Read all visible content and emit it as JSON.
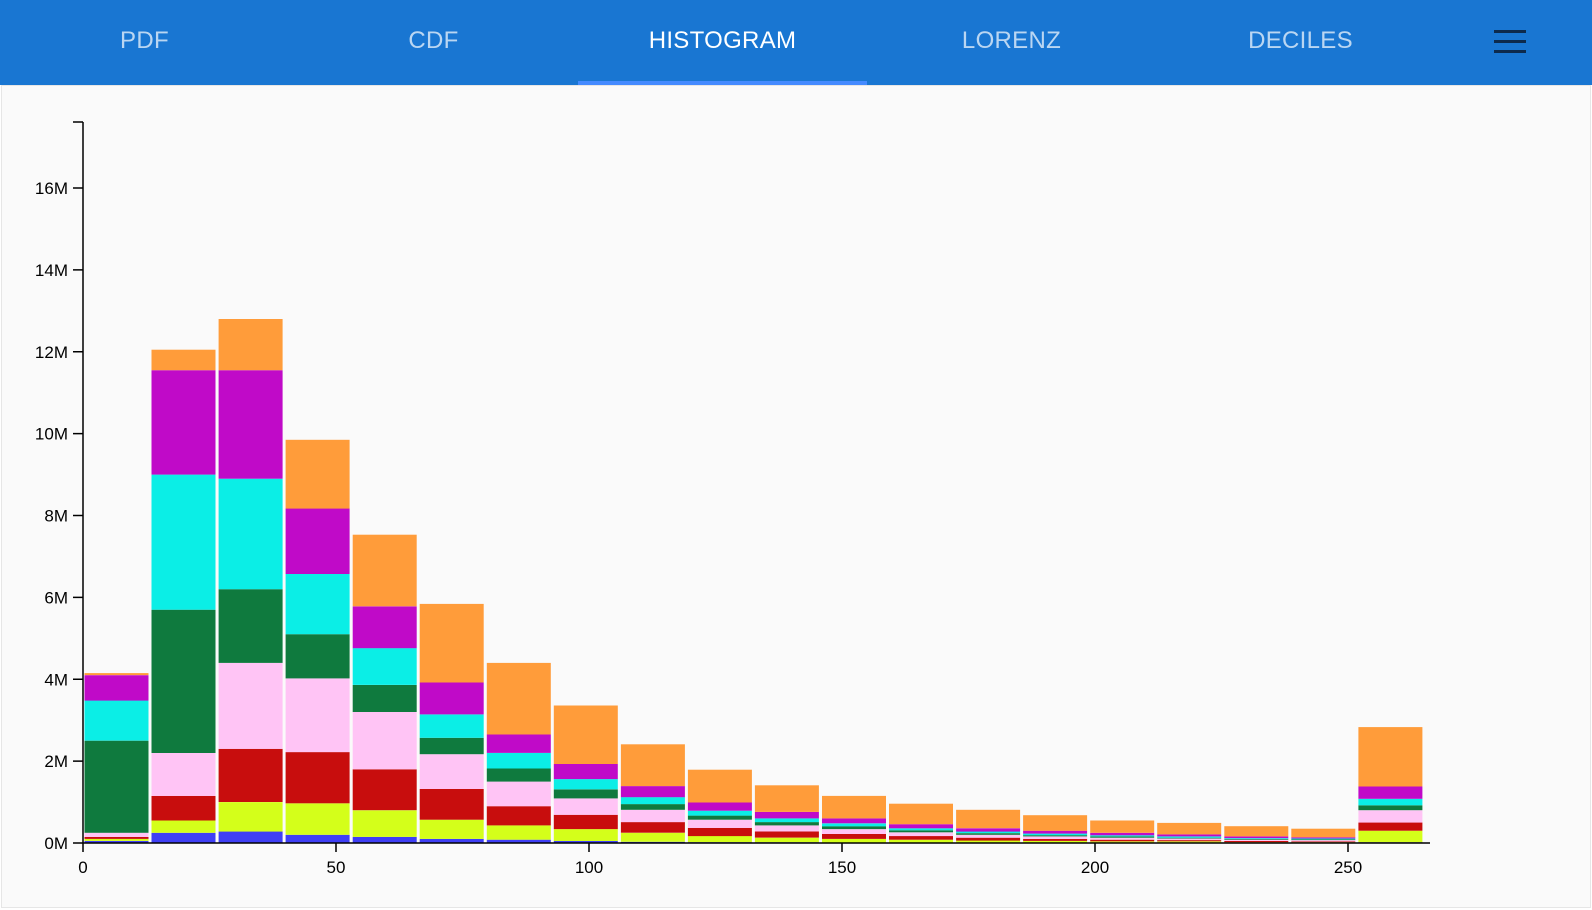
{
  "tabs": [
    {
      "label": "PDF",
      "active": false
    },
    {
      "label": "CDF",
      "active": false
    },
    {
      "label": "HISTOGRAM",
      "active": true
    },
    {
      "label": "LORENZ",
      "active": false
    },
    {
      "label": "DECILES",
      "active": false
    }
  ],
  "menu_icon": "hamburger-menu-icon",
  "colors": {
    "appbar": "#1976d2",
    "indicator": "#448aff",
    "series": [
      "#3f3ff5",
      "#d4ff1a",
      "#c80d0d",
      "#ffc4f5",
      "#0f7a3e",
      "#0beee6",
      "#c00ac8",
      "#ff9c3a"
    ]
  },
  "chart_data": {
    "type": "bar",
    "stacked": true,
    "title": "",
    "xlabel": "",
    "ylabel": "",
    "xlim": [
      0,
      265
    ],
    "ylim": [
      0,
      17.6
    ],
    "y_unit": "M",
    "x_ticks": [
      0,
      50,
      100,
      150,
      200,
      250
    ],
    "y_ticks": [
      0,
      2,
      4,
      6,
      8,
      10,
      12,
      14,
      16
    ],
    "y_tick_labels": [
      "0M",
      "2M",
      "4M",
      "6M",
      "8M",
      "10M",
      "12M",
      "14M",
      "16M"
    ],
    "bin_width": 13.25,
    "bins": [
      0,
      13.25,
      26.5,
      39.75,
      53,
      66.25,
      79.5,
      92.75,
      106,
      119.25,
      132.5,
      145.75,
      159,
      172.25,
      185.5,
      198.75,
      212,
      225.25,
      238.5,
      251.75
    ],
    "series": [
      {
        "values": [
          0.05,
          0.25,
          0.28,
          0.2,
          0.15,
          0.1,
          0.08,
          0.05,
          0.03,
          0.02,
          0.02,
          0.01,
          0.01,
          0.01,
          0.01,
          0.01,
          0.01,
          0.0,
          0.0,
          0.02
        ]
      },
      {
        "values": [
          0.05,
          0.3,
          0.72,
          0.77,
          0.65,
          0.47,
          0.35,
          0.29,
          0.22,
          0.15,
          0.11,
          0.09,
          0.07,
          0.05,
          0.04,
          0.03,
          0.03,
          0.02,
          0.02,
          0.28
        ]
      },
      {
        "values": [
          0.05,
          0.6,
          1.3,
          1.25,
          1.0,
          0.75,
          0.47,
          0.35,
          0.26,
          0.2,
          0.15,
          0.12,
          0.09,
          0.07,
          0.05,
          0.04,
          0.03,
          0.03,
          0.02,
          0.2
        ]
      },
      {
        "values": [
          0.1,
          1.05,
          2.1,
          1.8,
          1.4,
          0.85,
          0.6,
          0.4,
          0.3,
          0.2,
          0.15,
          0.12,
          0.09,
          0.07,
          0.06,
          0.05,
          0.04,
          0.03,
          0.03,
          0.3
        ]
      },
      {
        "values": [
          2.25,
          3.5,
          1.8,
          1.08,
          0.66,
          0.4,
          0.32,
          0.22,
          0.14,
          0.1,
          0.08,
          0.07,
          0.05,
          0.04,
          0.03,
          0.03,
          0.02,
          0.02,
          0.02,
          0.12
        ]
      },
      {
        "values": [
          0.98,
          3.3,
          2.7,
          1.47,
          0.9,
          0.57,
          0.38,
          0.25,
          0.17,
          0.12,
          0.09,
          0.07,
          0.05,
          0.04,
          0.04,
          0.03,
          0.03,
          0.02,
          0.02,
          0.16
        ]
      },
      {
        "values": [
          0.62,
          2.55,
          2.65,
          1.6,
          1.02,
          0.78,
          0.45,
          0.37,
          0.27,
          0.2,
          0.16,
          0.12,
          0.1,
          0.08,
          0.07,
          0.06,
          0.05,
          0.04,
          0.03,
          0.3
        ]
      },
      {
        "values": [
          0.05,
          0.5,
          1.25,
          1.68,
          1.75,
          1.92,
          1.75,
          1.43,
          1.02,
          0.8,
          0.65,
          0.55,
          0.5,
          0.45,
          0.38,
          0.3,
          0.28,
          0.25,
          0.21,
          1.45
        ]
      }
    ]
  }
}
